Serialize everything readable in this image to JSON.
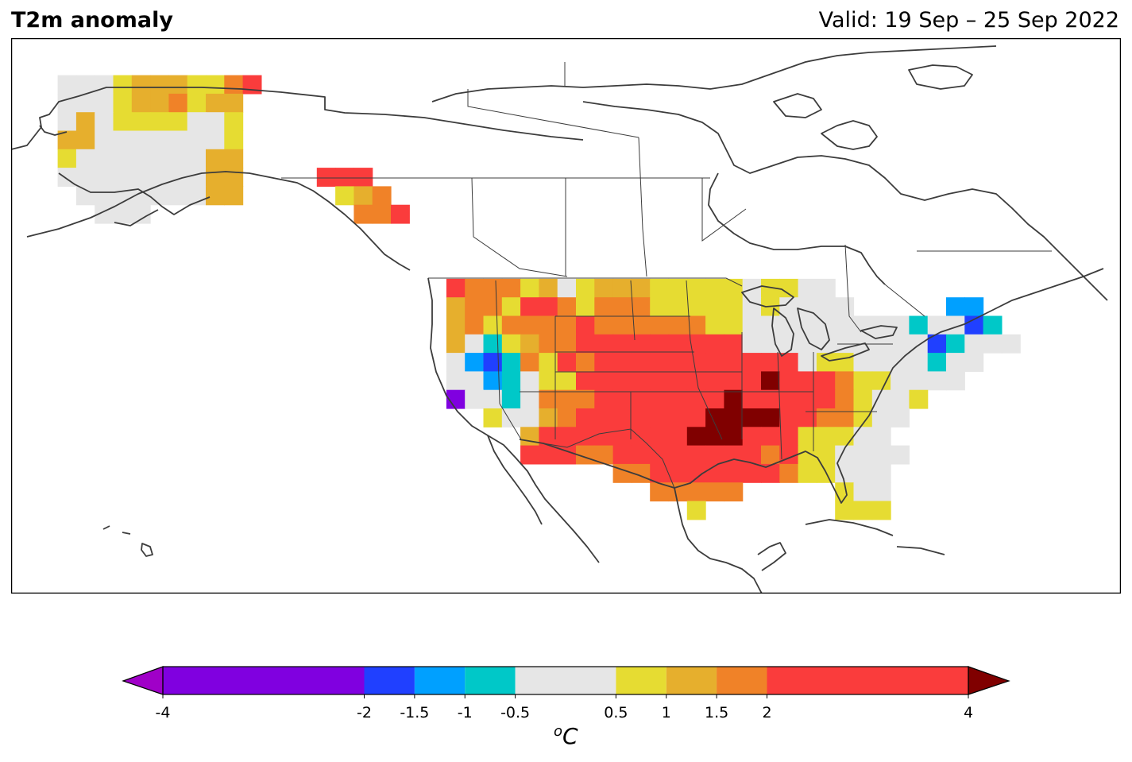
{
  "header": {
    "title": "T2m anomaly",
    "valid": "Valid: 19 Sep – 25 Sep 2022"
  },
  "colorbar": {
    "unit_base": "o",
    "unit_main": "C",
    "ticks": [
      -4,
      -2,
      -1.5,
      -1,
      -0.5,
      0.5,
      1,
      1.5,
      2,
      4
    ],
    "tick_labels": [
      "-4",
      "-2",
      "-1.5",
      "-1",
      "-0.5",
      "0.5",
      "1",
      "1.5",
      "2",
      "4"
    ],
    "bins": [
      {
        "from": -4,
        "to": -2,
        "color": "#8000e0"
      },
      {
        "from": -2,
        "to": -1.5,
        "color": "#2040ff"
      },
      {
        "from": -1.5,
        "to": -1,
        "color": "#00a0ff"
      },
      {
        "from": -1,
        "to": -0.5,
        "color": "#00c8c8"
      },
      {
        "from": -0.5,
        "to": 0.5,
        "color": "#e6e6e6"
      },
      {
        "from": 0.5,
        "to": 1,
        "color": "#e6dc32"
      },
      {
        "from": 1,
        "to": 1.5,
        "color": "#e6af2d"
      },
      {
        "from": 1.5,
        "to": 2,
        "color": "#f08228"
      },
      {
        "from": 2,
        "to": 4,
        "color": "#fa3c3c"
      }
    ],
    "under_color": "#a000c8",
    "over_color": "#800000"
  },
  "map": {
    "region": "North America",
    "cell_legend": {
      "P": "< -2",
      "B": "-2 to -1.5",
      "L": "-1.5 to -1",
      "T": "-1 to -0.5",
      "G": "-0.5 to 0.5",
      "Y": "0.5 to 1",
      "O": "1 to 1.5",
      "N": "1.5 to 2",
      "R": "2 to 4",
      "D": "> 4"
    },
    "anomaly_grid": [
      "..........................................................",
      "..........................................................",
      "..GGGYOOOYYNR.............................................",
      "..GGGYOONYOO..............................................",
      "..GOGYYYYGGY..............................................",
      "..OOGGGGGGGY..............................................",
      "..YGGGGGGGOO..............................................",
      "..GGGGGGGGOO....RRR.......................................",
      "...GGGGGGGOO.....YON......................................",
      "....GGG...........NNR.....................................",
      "..........................................................",
      "..........................................................",
      "..........................................................",
      ".......................RNNNYOGYOOOYYYYYGYYGG..............",
      ".......................ONNYRRNYNNNYYYYYGYGGGG.....LL......",
      ".......................ONYNNNNRNNNNNNYYGGGGGGGGGTGGBT.....",
      ".......................OGTYONNRRRRRRRRRGGGGGGGGGGBTGGG....",
      ".......................GLBTNYRNRRRRRRRRRRRGYYGGGGTGG......",
      ".......................GGLTGYYRRRRRRRRRRDRRRNYYGGGG.......",
      ".......................PGGTGNNNRRRRRRRDRRRRRNYGGY.........",
      ".........................YGGONRRRRRRRDDDDRRNNYGG..........",
      "...........................ORRRRRRRRDDDRRRYYYGG...........",
      "...........................RRRNNRRRRRRRRNRYYGGGG..........",
      "................................NNRRRRRRRNYYGGG...........",
      "..................................NNNNN.....YGG...........",
      "....................................Y.......YYY...........",
      "..........................................................",
      "..........................................................",
      "..........................................................",
      ".........................................................."
    ]
  }
}
